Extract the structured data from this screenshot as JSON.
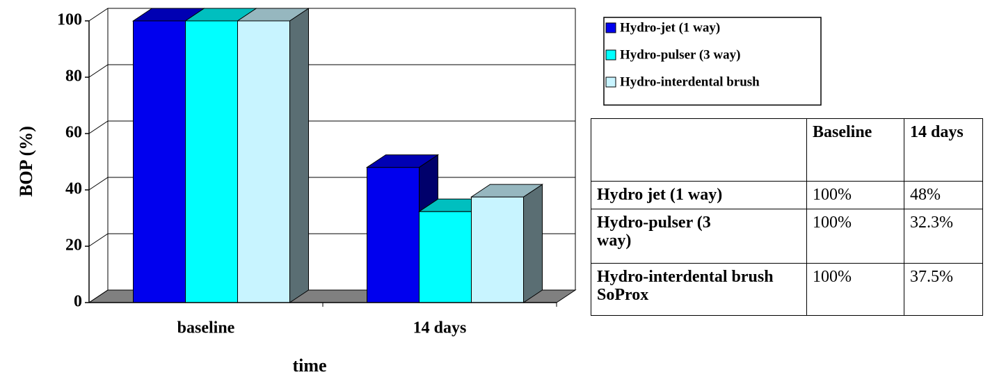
{
  "chart_data": {
    "type": "bar3d",
    "x_label": "time",
    "y_label": "BOP (%)",
    "categories": [
      "baseline",
      "14 days"
    ],
    "series": [
      {
        "name": "Hydro-jet (1 way)",
        "color": "#0000ee",
        "values": [
          100,
          48
        ]
      },
      {
        "name": "Hydro-pulser (3 way)",
        "color": "#00ffff",
        "values": [
          100,
          32.3
        ]
      },
      {
        "name": "Hydro-interdental brush",
        "color": "#c8f4ff",
        "values": [
          100,
          37.5
        ]
      }
    ],
    "ylim": [
      0,
      100
    ],
    "yticks": [
      0,
      20,
      40,
      60,
      80,
      100
    ],
    "grid": true,
    "legend": "upper right"
  },
  "table": {
    "columns": [
      "Baseline",
      "14 days"
    ],
    "rows": [
      [
        "Hydro jet (1 way)",
        "100%",
        "48%"
      ],
      [
        "Hydro-pulser (3 way)",
        "100%",
        "32.3%"
      ],
      [
        "Hydro-interdental brush SoProx",
        "100%",
        "37.5%"
      ]
    ]
  }
}
